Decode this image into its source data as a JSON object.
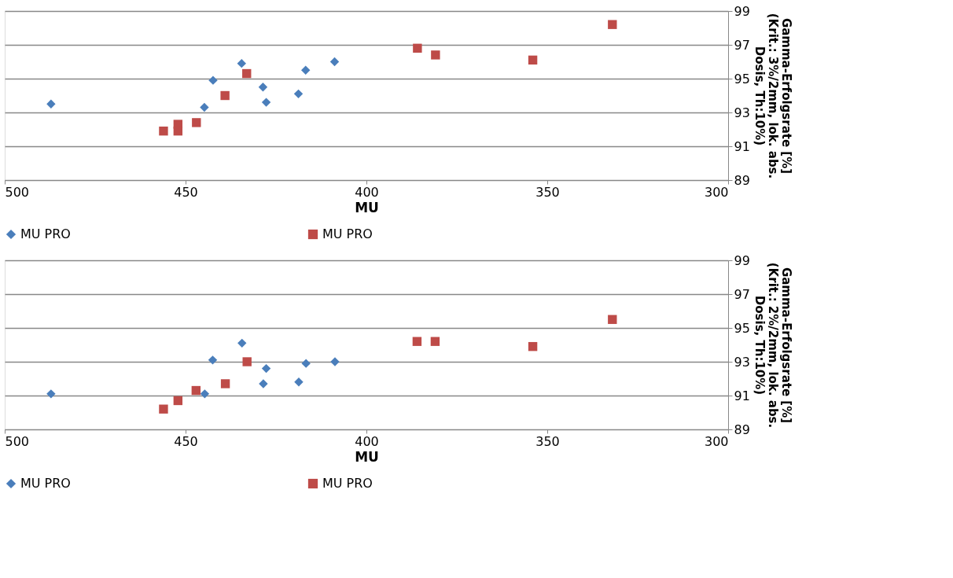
{
  "chart_data": [
    {
      "type": "scatter",
      "xlabel": "MU",
      "ylabel": "Gamma-Erfolgsrate [%]\n(Krit.: 3%/2mm, lok. abs.\nDosis, Th:10%)",
      "xlim": [
        500,
        300
      ],
      "xticks": [
        500,
        450,
        400,
        350,
        300
      ],
      "ylim": [
        89,
        99
      ],
      "yticks": [
        89,
        91,
        93,
        95,
        97,
        99
      ],
      "grid": "y",
      "legend": "bottom",
      "series": [
        {
          "name": "MU PRO",
          "color": "#4a7ebb",
          "marker": "diamond",
          "x": [
            487.2,
            444.8,
            442.4,
            434.5,
            428.6,
            427.7,
            418.8,
            416.8,
            408.8
          ],
          "values": [
            93.5,
            93.3,
            94.9,
            95.9,
            94.5,
            93.6,
            94.1,
            95.5,
            96.0
          ]
        },
        {
          "name": "MU PRO",
          "color": "#be4b48",
          "marker": "square",
          "x": [
            456.1,
            452.1,
            452.1,
            447.0,
            439.1,
            433.1,
            385.9,
            380.9,
            354.0,
            332.0
          ],
          "values": [
            91.9,
            92.3,
            91.9,
            92.4,
            94.0,
            95.3,
            96.8,
            96.4,
            96.1,
            98.2
          ]
        }
      ]
    },
    {
      "type": "scatter",
      "xlabel": "MU",
      "ylabel": "Gamma-Erfolgsrate [%]\n(Krit.: 2%/2mm, lok. abs.\nDosis, Th:10%)",
      "xlim": [
        500,
        300
      ],
      "xticks": [
        500,
        450,
        400,
        350,
        300
      ],
      "ylim": [
        89,
        99
      ],
      "yticks": [
        89,
        91,
        93,
        95,
        97,
        99
      ],
      "grid": "y",
      "legend": "bottom",
      "series": [
        {
          "name": "MU PRO",
          "color": "#4a7ebb",
          "marker": "diamond",
          "x": [
            487.2,
            444.7,
            442.5,
            434.4,
            427.7,
            428.5,
            418.7,
            416.7,
            408.7
          ],
          "values": [
            91.1,
            91.1,
            93.1,
            94.1,
            92.6,
            91.7,
            91.8,
            92.9,
            93.0
          ]
        },
        {
          "name": "MU PRO",
          "color": "#be4b48",
          "marker": "square",
          "x": [
            456.1,
            452.1,
            447.1,
            439.0,
            433.0,
            386.0,
            381.0,
            354.0,
            332.0
          ],
          "values": [
            90.2,
            90.7,
            91.3,
            91.7,
            93.0,
            94.2,
            94.2,
            93.9,
            95.5
          ]
        }
      ]
    }
  ]
}
